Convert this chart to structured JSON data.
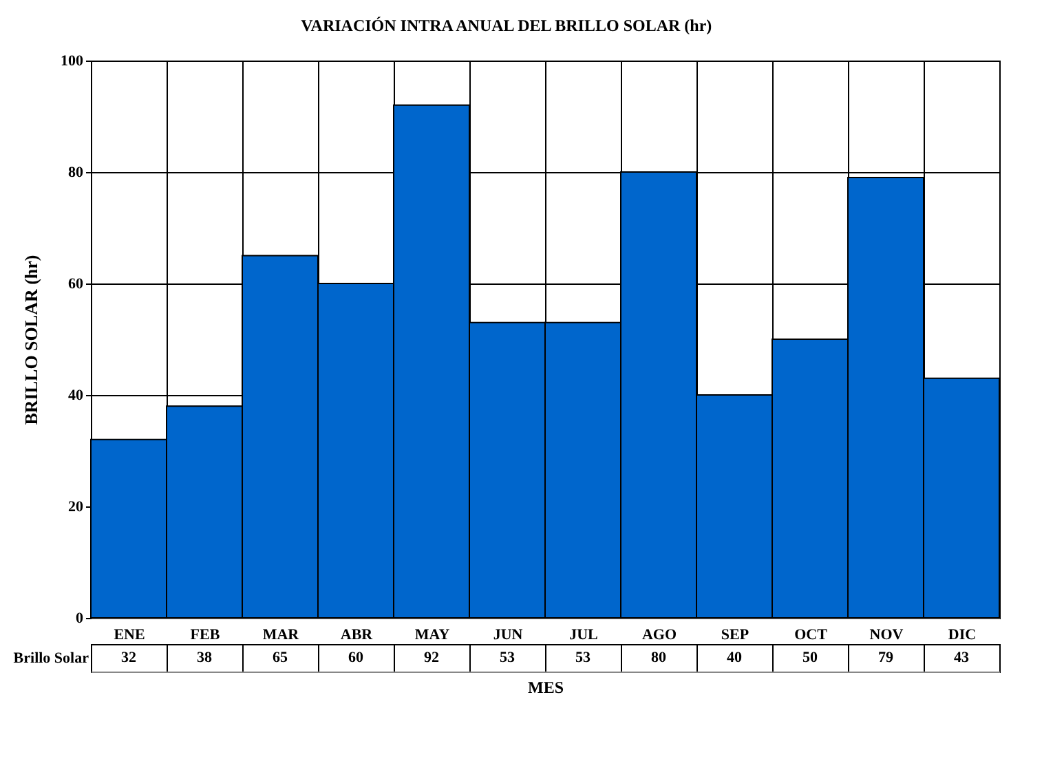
{
  "chart_data": {
    "type": "bar",
    "title": "VARIACIÓN INTRA ANUAL DEL BRILLO SOLAR (hr)",
    "xlabel": "MES",
    "ylabel": "BRILLO SOLAR (hr)",
    "categories": [
      "ENE",
      "FEB",
      "MAR",
      "ABR",
      "MAY",
      "JUN",
      "JUL",
      "AGO",
      "SEP",
      "OCT",
      "NOV",
      "DIC"
    ],
    "series": [
      {
        "name": "Brillo Solar",
        "color": "#0066cc",
        "values": [
          32,
          38,
          65,
          60,
          92,
          53,
          53,
          80,
          40,
          50,
          79,
          43
        ]
      }
    ],
    "ylim": [
      0,
      100
    ],
    "yticks": [
      0,
      20,
      40,
      60,
      80,
      100
    ],
    "grid": true,
    "legend": false,
    "data_labels": true
  }
}
